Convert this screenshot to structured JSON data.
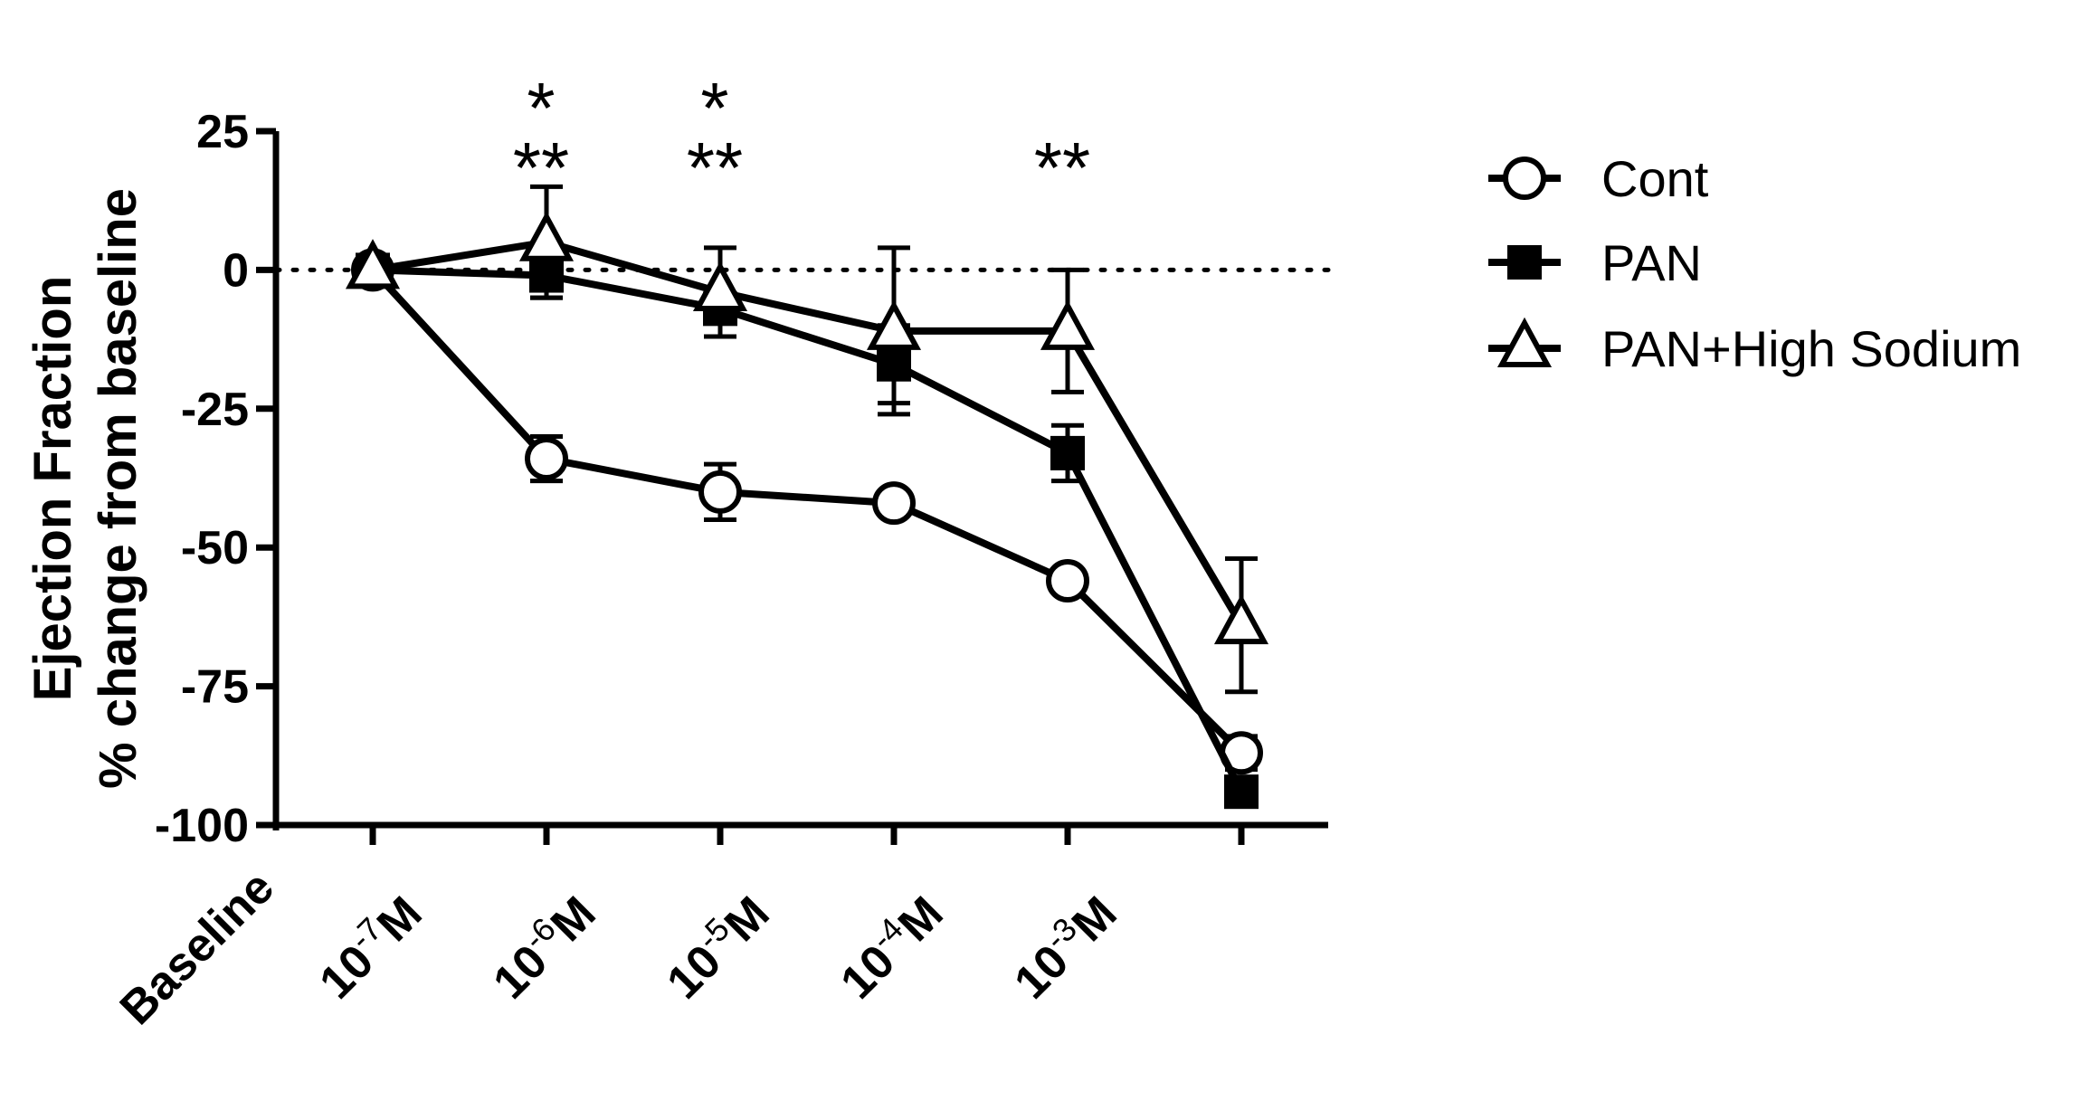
{
  "chart_data": {
    "type": "line",
    "title": "",
    "ylabel": "Ejection Fraction",
    "ylabel2": "% change from baseline",
    "xlabel": "",
    "ylim": [
      -100,
      25
    ],
    "yticks": [
      25,
      0,
      -25,
      -50,
      -75,
      -100
    ],
    "ytick_labels": [
      "25",
      "0",
      "-25",
      "-50",
      "-75",
      "-100"
    ],
    "categories": [
      {
        "base": "Baseline",
        "exp": "",
        "unit": ""
      },
      {
        "base": "10",
        "exp": "-7",
        "unit": "M"
      },
      {
        "base": "10",
        "exp": "-6",
        "unit": "M"
      },
      {
        "base": "10",
        "exp": "-5",
        "unit": "M"
      },
      {
        "base": "10",
        "exp": "-4",
        "unit": "M"
      },
      {
        "base": "10",
        "exp": "-3",
        "unit": "M"
      }
    ],
    "reference_line": {
      "y": 0,
      "style": "dotted"
    },
    "legend_position": "right",
    "series": [
      {
        "name": "Cont",
        "marker": "circle-open",
        "values": [
          0,
          -34,
          -40,
          -42,
          -56,
          -87
        ],
        "error": [
          1,
          4,
          5,
          0,
          0,
          3
        ]
      },
      {
        "name": "PAN",
        "marker": "square-filled",
        "values": [
          0,
          -1,
          -7,
          -17,
          -33,
          -94
        ],
        "error": [
          1,
          4,
          2,
          7,
          5,
          1.5
        ]
      },
      {
        "name": "PAN+High Sodium",
        "marker": "triangle-open",
        "values": [
          0,
          5,
          -4,
          -11,
          -11,
          -64
        ],
        "error": [
          1,
          10,
          8,
          15,
          11,
          12
        ]
      }
    ],
    "annotations": [
      {
        "x_index": 1,
        "lines": [
          "*",
          "**"
        ]
      },
      {
        "x_index": 2,
        "lines": [
          "*",
          "**"
        ]
      },
      {
        "x_index": 4,
        "lines": [
          "**"
        ]
      }
    ]
  }
}
